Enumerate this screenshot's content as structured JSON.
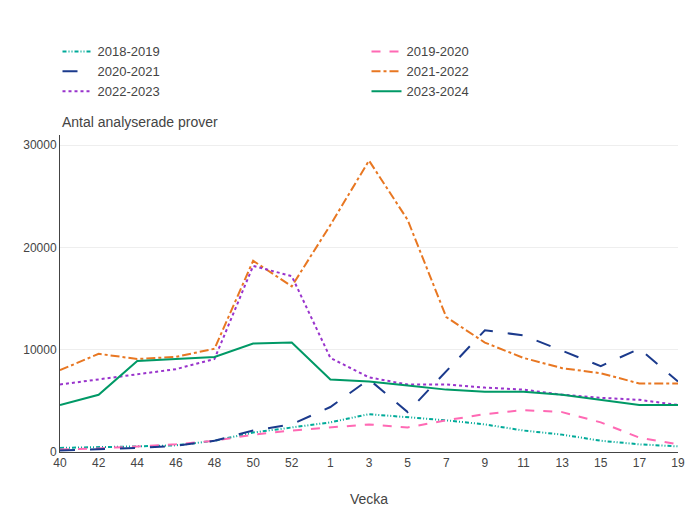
{
  "chart_data": {
    "type": "line",
    "ylabel": "Antal analyserade prover",
    "xlabel": "Vecka",
    "categories": [
      "40",
      "42",
      "44",
      "46",
      "48",
      "50",
      "52",
      "1",
      "3",
      "5",
      "7",
      "9",
      "11",
      "13",
      "15",
      "17",
      "19"
    ],
    "series": [
      {
        "name": "2018-2019",
        "color": "#00AA99",
        "line_style": "dashdotdot",
        "values": [
          400,
          450,
          550,
          650,
          1100,
          1900,
          2400,
          2900,
          3700,
          3400,
          3100,
          2700,
          2100,
          1700,
          1100,
          750,
          550
        ]
      },
      {
        "name": "2019-2020",
        "color": "#FF69B4",
        "line_style": "dashed",
        "values": [
          250,
          350,
          550,
          750,
          1100,
          1700,
          2100,
          2400,
          2700,
          2400,
          3100,
          3700,
          4100,
          3900,
          2900,
          1400,
          750
        ]
      },
      {
        "name": "2020-2021",
        "color": "#1B3A8C",
        "line_style": "longdash",
        "values": [
          150,
          250,
          400,
          600,
          1100,
          2100,
          2700,
          4400,
          7100,
          3900,
          7900,
          11900,
          11400,
          9900,
          8400,
          10100,
          6900
        ]
      },
      {
        "name": "2021-2022",
        "color": "#E87722",
        "line_style": "dashdot",
        "values": [
          8000,
          9600,
          9100,
          9300,
          10100,
          18700,
          16200,
          22200,
          28500,
          22700,
          13200,
          10700,
          9200,
          8200,
          7700,
          6700,
          6700
        ]
      },
      {
        "name": "2022-2023",
        "color": "#9933CC",
        "line_style": "dotted",
        "values": [
          6600,
          7100,
          7600,
          8100,
          9100,
          18200,
          17200,
          9200,
          7300,
          6600,
          6600,
          6300,
          6100,
          5600,
          5300,
          5100,
          4600
        ]
      },
      {
        "name": "2023-2024",
        "color": "#009966",
        "line_style": "solid",
        "values": [
          4600,
          5600,
          8900,
          9100,
          9300,
          10600,
          10700,
          7100,
          6900,
          6500,
          6100,
          5900,
          5900,
          5600,
          5100,
          4600,
          4600
        ]
      }
    ],
    "ylim": [
      0,
      31000
    ],
    "yticks": [
      0,
      10000,
      20000,
      30000
    ],
    "grid": true,
    "legend": "top"
  }
}
